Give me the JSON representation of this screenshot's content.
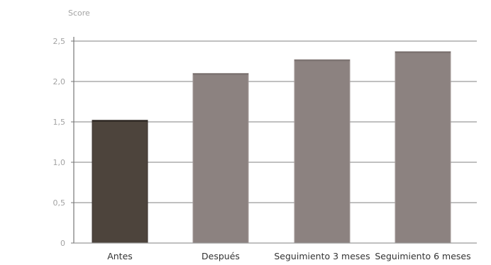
{
  "chart_data": {
    "type": "bar",
    "ylabel": "Score",
    "categories": [
      "Antes",
      "Después",
      "Seguimiento 3 meses",
      "Seguimiento 6 meses"
    ],
    "values": [
      1.52,
      2.1,
      2.27,
      2.37
    ],
    "ylim": [
      0,
      2.5
    ],
    "yticks": [
      "0",
      "0,5",
      "1,0",
      "1,5",
      "2,0",
      "2,5"
    ],
    "ytick_values": [
      0,
      0.5,
      1.0,
      1.5,
      2.0,
      2.5
    ],
    "grid": true,
    "colors": {
      "first_bar": "#4d443c",
      "other_bars": "#8c8280",
      "bar_edge": "#a39a98",
      "grid": "#9a9a9a",
      "axis": "#777777"
    }
  }
}
